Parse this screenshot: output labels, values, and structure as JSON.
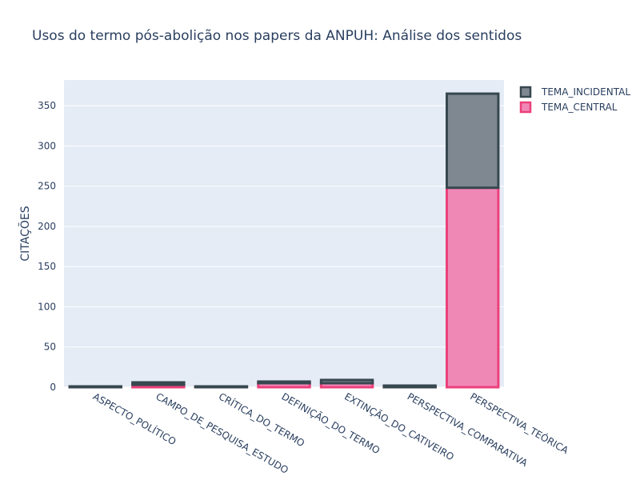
{
  "chart_data": {
    "type": "bar",
    "barmode": "stack",
    "title": "Usos do termo pós-abolição nos papers da ANPUH: Análise dos sentidos",
    "xlabel": "",
    "ylabel": "CITAÇÕES",
    "ylim": [
      0,
      382
    ],
    "yticks": [
      0,
      50,
      100,
      150,
      200,
      250,
      300,
      350
    ],
    "grid": true,
    "legend_position": "top-right",
    "categories": [
      "ASPECTO_POLÍTICO",
      "CAMPO_DE_PESQUISA_ESTUDO",
      "CRÍTICA_DO_TERMO",
      "DEFINIÇÃO_DO_TERMO",
      "EXTINÇÃO_DO_CATIVEIRO",
      "PERSPECTIVA_COMPARATIVA",
      "PERSPECTIVA_TEÓRICA"
    ],
    "series": [
      {
        "name": "TEMA_CENTRAL",
        "values": [
          0,
          3,
          0,
          5,
          5,
          0,
          248
        ],
        "fill": "#f088b6",
        "stroke": "#ec407a"
      },
      {
        "name": "TEMA_INCIDENTAL",
        "values": [
          1,
          3,
          1,
          2,
          4,
          2,
          117
        ],
        "fill": "#7f8891",
        "stroke": "#37474f"
      }
    ],
    "legend_order": [
      "TEMA_INCIDENTAL",
      "TEMA_CENTRAL"
    ]
  }
}
